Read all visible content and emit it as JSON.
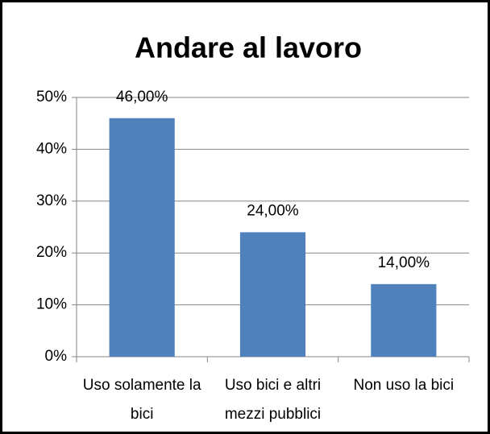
{
  "chart_data": {
    "type": "bar",
    "title": "Andare al lavoro",
    "categories": [
      "Uso solamente la bici",
      "Uso bici e altri mezzi pubblici",
      "Non uso la bici"
    ],
    "values": [
      46,
      24,
      14
    ],
    "value_labels": [
      "46,00%",
      "24,00%",
      "14,00%"
    ],
    "color": "#4f81bd",
    "ylim": [
      0,
      50
    ],
    "yticks": [
      {
        "value": 0,
        "label": "0%"
      },
      {
        "value": 10,
        "label": "10%"
      },
      {
        "value": 20,
        "label": "20%"
      },
      {
        "value": 30,
        "label": "30%"
      },
      {
        "value": 40,
        "label": "40%"
      },
      {
        "value": 50,
        "label": "50%"
      }
    ],
    "grid": true
  }
}
